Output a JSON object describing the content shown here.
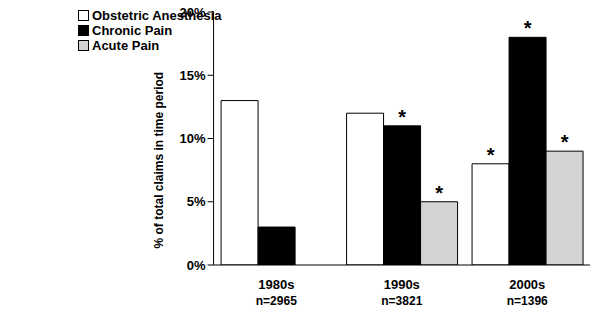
{
  "chart_data": {
    "type": "bar",
    "y_label": "% of total claims in time period",
    "categories": [
      "1980s",
      "1990s",
      "2000s"
    ],
    "category_notes": [
      "n=2965",
      "n=3821",
      "n=1396"
    ],
    "series": [
      {
        "name": "Obstetric Anesthesia",
        "color": "#ffffff",
        "values": [
          13,
          12,
          8
        ],
        "annotations": [
          null,
          null,
          "*"
        ]
      },
      {
        "name": "Chronic Pain",
        "color": "#000000",
        "values": [
          3,
          11,
          18
        ],
        "annotations": [
          null,
          "*",
          "*"
        ]
      },
      {
        "name": "Acute Pain",
        "color": "#d3d3d3",
        "values": [
          null,
          5,
          9
        ],
        "annotations": [
          null,
          "*",
          "*"
        ]
      }
    ],
    "ylim": [
      0,
      20
    ],
    "yticks": [
      {
        "value": 0,
        "label": "0%"
      },
      {
        "value": 5,
        "label": "5%"
      },
      {
        "value": 10,
        "label": "10%"
      },
      {
        "value": 15,
        "label": "15%"
      },
      {
        "value": 20,
        "label": "20%"
      }
    ],
    "grid": false,
    "legend": "top-left"
  }
}
